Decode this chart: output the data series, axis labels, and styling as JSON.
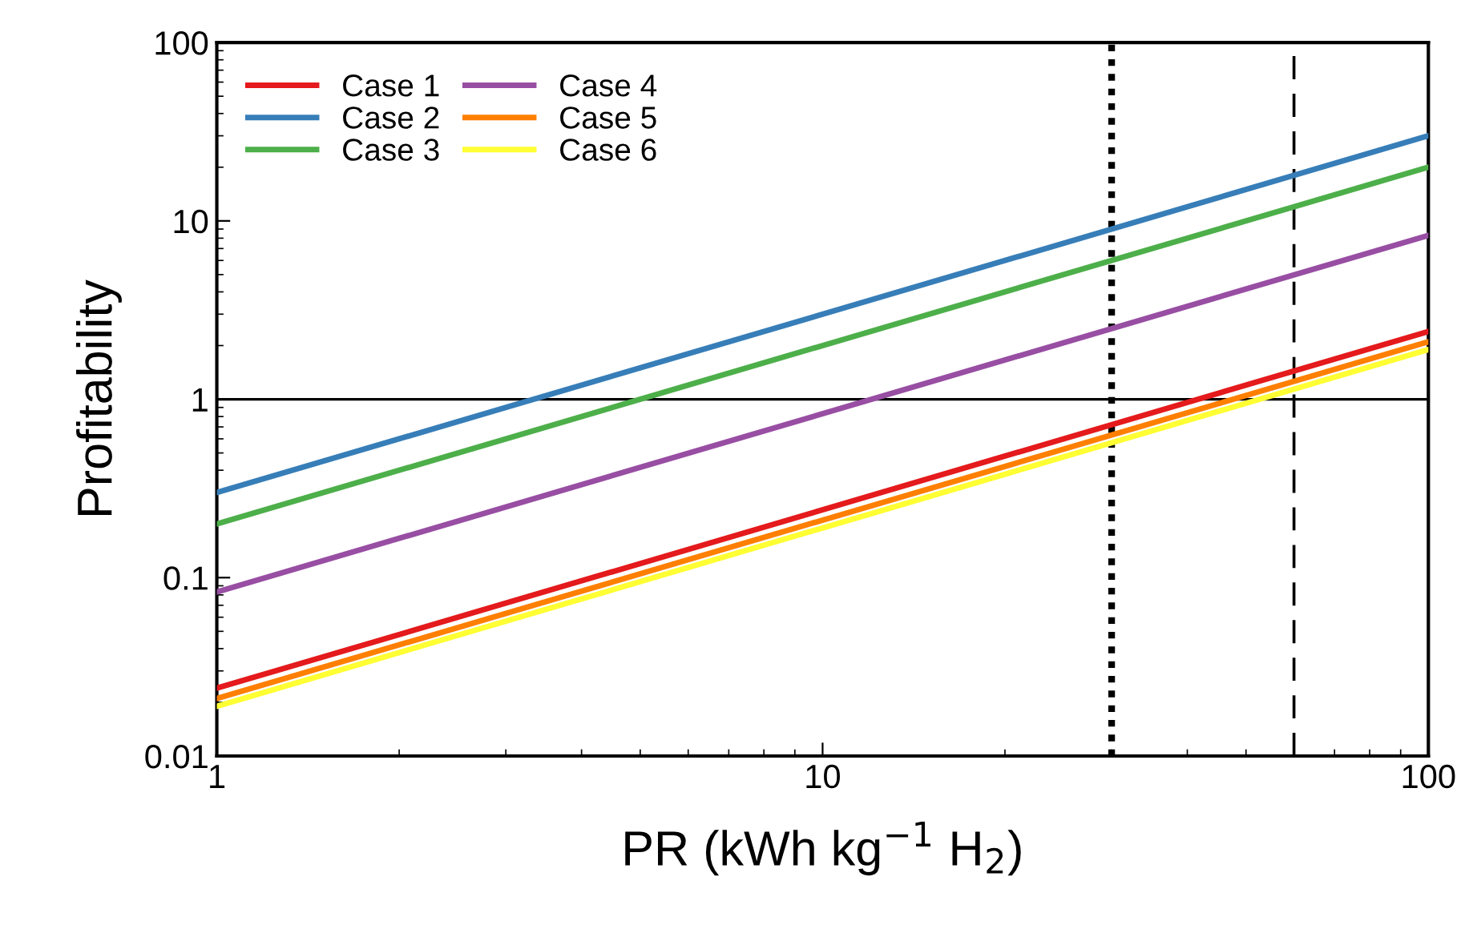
{
  "chart_data": {
    "type": "line",
    "xlabel": "PR (kWh kg$^{−1}$ H$_{2}$)",
    "ylabel": "Profitability",
    "log": "xy",
    "x": [
      1,
      100
    ],
    "xlim": [
      1,
      100
    ],
    "ylim": [
      0.01,
      100
    ],
    "xticks": [
      1,
      10,
      100
    ],
    "yticks": [
      0.01,
      0.1,
      1,
      10,
      100
    ],
    "series": [
      {
        "name": "Case 1",
        "color": "#e41a1c",
        "values": [
          0.024,
          2.4
        ]
      },
      {
        "name": "Case 2",
        "color": "#377eb8",
        "values": [
          0.3,
          30
        ]
      },
      {
        "name": "Case 3",
        "color": "#4daf4a",
        "values": [
          0.2,
          20
        ]
      },
      {
        "name": "Case 4",
        "color": "#984ea3",
        "values": [
          0.083,
          8.3
        ]
      },
      {
        "name": "Case 5",
        "color": "#ff7f00",
        "values": [
          0.021,
          2.1
        ]
      },
      {
        "name": "Case 6",
        "color": "#ffff33",
        "values": [
          0.019,
          1.9
        ]
      }
    ],
    "ref_lines": [
      {
        "axis": "y",
        "value": 1,
        "color": "#000000",
        "line_style": "solid"
      },
      {
        "axis": "x",
        "value": 30,
        "color": "#000000",
        "line_style": "dotted"
      },
      {
        "axis": "x",
        "value": 60,
        "color": "#000000",
        "line_style": "dashed"
      }
    ],
    "legend": "top left",
    "grid": false
  }
}
